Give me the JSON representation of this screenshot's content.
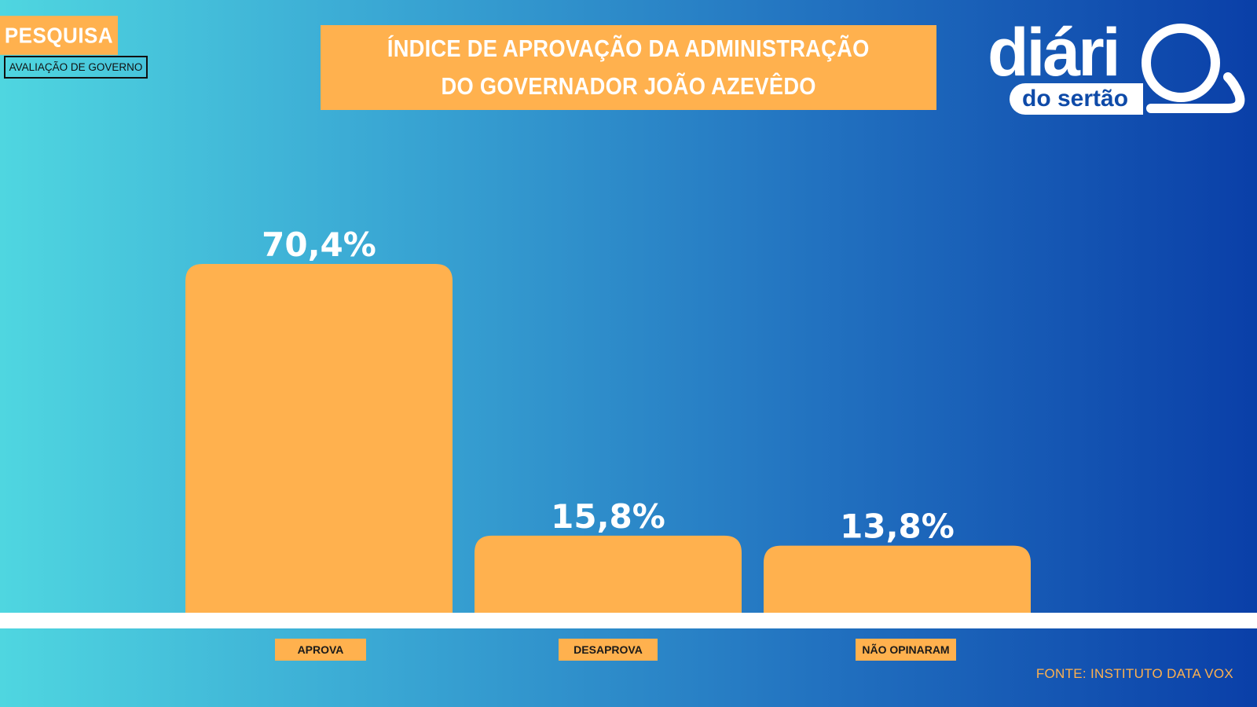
{
  "header": {
    "tag": "PESQUISA",
    "subtag": "AVALIAÇÃO DE GOVERNO",
    "title_line1": "ÍNDICE DE APROVAÇÃO DA ADMINISTRAÇÃO",
    "title_line2": "DO GOVERNADOR JOÃO AZEVÊDO"
  },
  "logo": {
    "top": "diári",
    "bottom": "do sertão"
  },
  "footer": {
    "source": "FONTE: INSTITUTO DATA VOX"
  },
  "colors": {
    "accent": "#ffb14e",
    "text": "#ffffff",
    "brand_blue": "#0e4aa8"
  },
  "chart_data": {
    "type": "bar",
    "title": "ÍNDICE DE APROVAÇÃO DA ADMINISTRAÇÃO DO GOVERNADOR JOÃO AZEVÊDO",
    "categories": [
      "APROVA",
      "DESAPROVA",
      "NÃO OPINARAM"
    ],
    "values": [
      70.4,
      15.8,
      13.8
    ],
    "value_labels": [
      "70,4%",
      "15,8%",
      "13,8%"
    ],
    "unit": "%",
    "ylim": [
      0,
      70.4
    ],
    "grid": false,
    "legend": "none",
    "bar_color": "#ffb14e"
  }
}
